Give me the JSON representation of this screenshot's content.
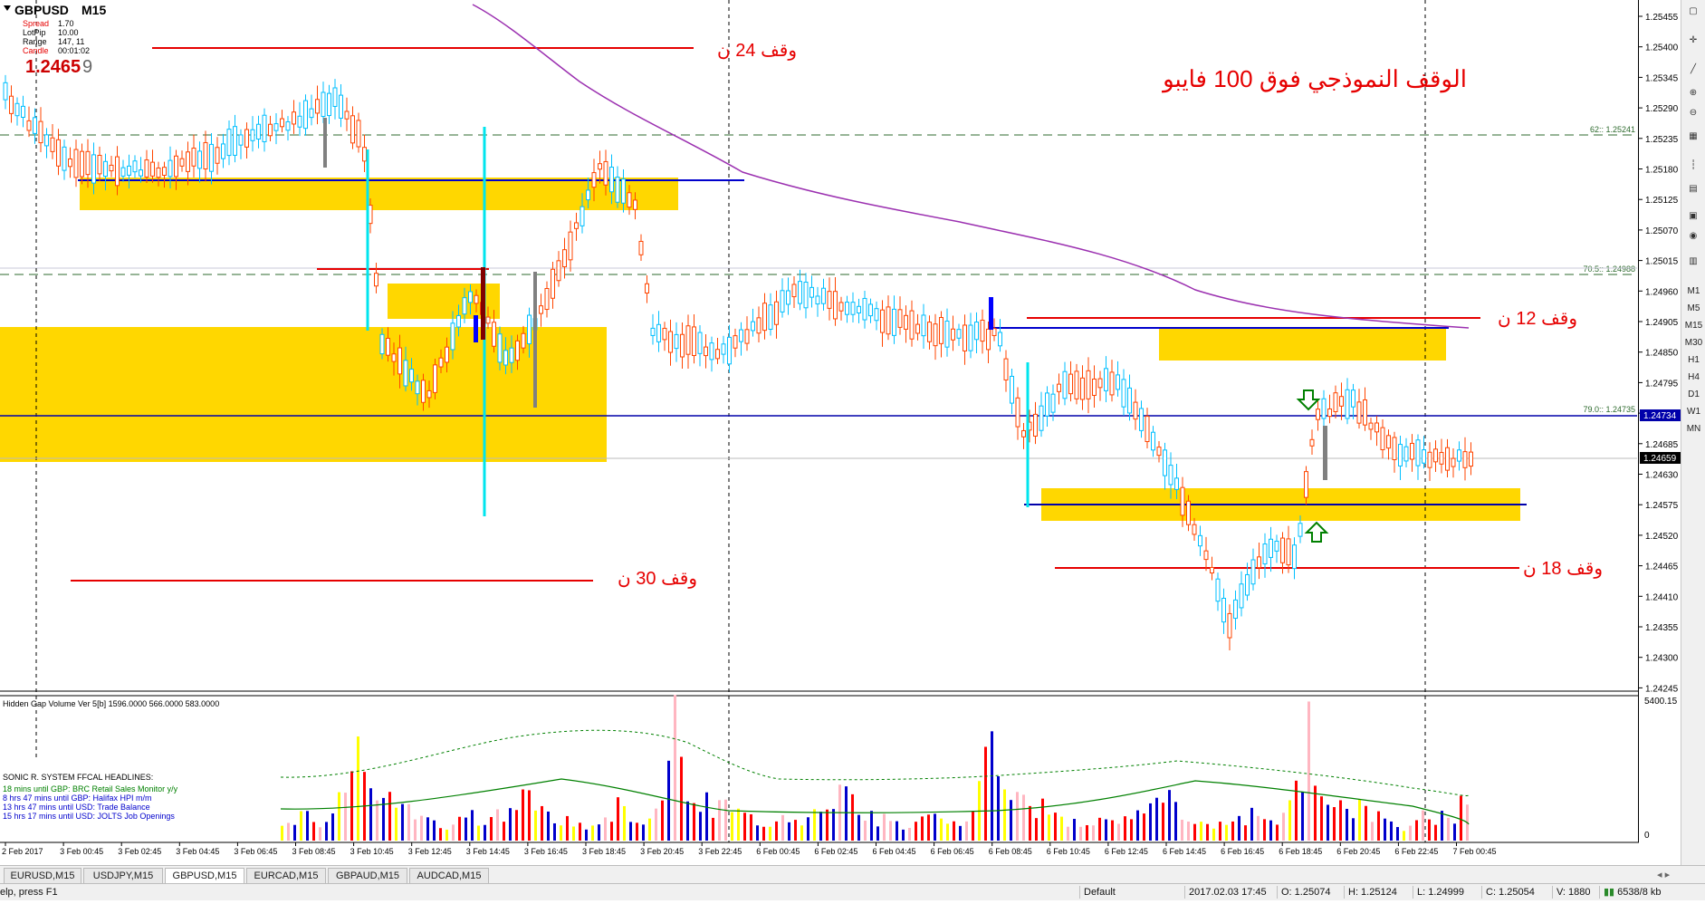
{
  "header": {
    "symbol": "GBPUSD",
    "timeframe": "M15",
    "info_labels": [
      "Spread",
      "LotPip",
      "Range",
      "Candle"
    ],
    "info_values": [
      "1.70",
      "10.00",
      "147, 11",
      "00:01:02"
    ],
    "bid_main": "1.2465",
    "bid_last": "9"
  },
  "annotations": {
    "main_title": "الوقف النموذجي فوق 100 فايبو",
    "stop_24": "وقف 24 ن",
    "stop_30": "وقف 30 ن",
    "stop_12": "وقف 12 ن",
    "stop_18": "وقف 18 ن"
  },
  "fib_labels": [
    "62:: 1.25241",
    "70.5:: 1.24988",
    "79.0:: 1.24735"
  ],
  "price_axis": {
    "ticks": [
      "1.25455",
      "1.25400",
      "1.25345",
      "1.25290",
      "1.25235",
      "1.25180",
      "1.25125",
      "1.25070",
      "1.25015",
      "1.24960",
      "1.24905",
      "1.24850",
      "1.24795",
      "1.24740",
      "1.24685",
      "1.24630",
      "1.24575",
      "1.24520",
      "1.24465",
      "1.24410",
      "1.24355",
      "1.24300",
      "1.24245"
    ],
    "current_line_label": "1.24734",
    "current_price_label": "1.24659"
  },
  "time_axis": [
    "2 Feb 2017",
    "3 Feb 00:45",
    "3 Feb 02:45",
    "3 Feb 04:45",
    "3 Feb 06:45",
    "3 Feb 08:45",
    "3 Feb 10:45",
    "3 Feb 12:45",
    "3 Feb 14:45",
    "3 Feb 16:45",
    "3 Feb 18:45",
    "3 Feb 20:45",
    "3 Feb 22:45",
    "6 Feb 00:45",
    "6 Feb 02:45",
    "6 Feb 04:45",
    "6 Feb 06:45",
    "6 Feb 08:45",
    "6 Feb 10:45",
    "6 Feb 12:45",
    "6 Feb 14:45",
    "6 Feb 16:45",
    "6 Feb 18:45",
    "6 Feb 20:45",
    "6 Feb 22:45",
    "7 Feb 00:45"
  ],
  "indicator": {
    "title": "Hidden Gap Volume Ver 5[b] 1596.0000 566.0000 583.0000",
    "max_label": "5400.15",
    "min_label": "0"
  },
  "news": {
    "heading": "SONIC R. SYSTEM  FFCAL HEADLINES:",
    "lines": [
      "18 mins until GBP: BRC Retail Sales Monitor y/y",
      "8 hrs 47 mins until GBP: Halifax HPI m/m",
      "13 hrs 47 mins until USD: Trade Balance",
      "15 hrs 17 mins until USD: JOLTS Job Openings"
    ],
    "colors": [
      "#008000",
      "#0000cc",
      "#0000cc",
      "#0000cc"
    ]
  },
  "toolbar": {
    "icons": [
      "crosshair-icon",
      "zoom-in-icon",
      "zoom-out-icon",
      "tile-icon",
      "period-sep-icon",
      "template-icon",
      "autoscroll-icon",
      "chart-shift-icon"
    ],
    "timeframes": [
      "M1",
      "M5",
      "M15",
      "M30",
      "H1",
      "H4",
      "D1",
      "W1",
      "MN"
    ]
  },
  "tabs": [
    "EURUSD,M15",
    "USDJPY,M15",
    "GBPUSD,M15",
    "EURCAD,M15",
    "GBPAUD,M15",
    "AUDCAD,M15"
  ],
  "active_tab": 2,
  "status": {
    "help": "elp, press F1",
    "profile": "Default",
    "datetime": "2017.02.03 17:45",
    "open": "O: 1.25074",
    "high": "H: 1.25124",
    "low": "L: 1.24999",
    "close": "C: 1.25054",
    "volume": "V: 1880",
    "traffic": "6538/8 kb"
  },
  "colors": {
    "bull": "#00bfff",
    "bear": "#ff4500",
    "zone": "#ffd700",
    "annot": "#e60000",
    "ma": "#9b30b0"
  }
}
